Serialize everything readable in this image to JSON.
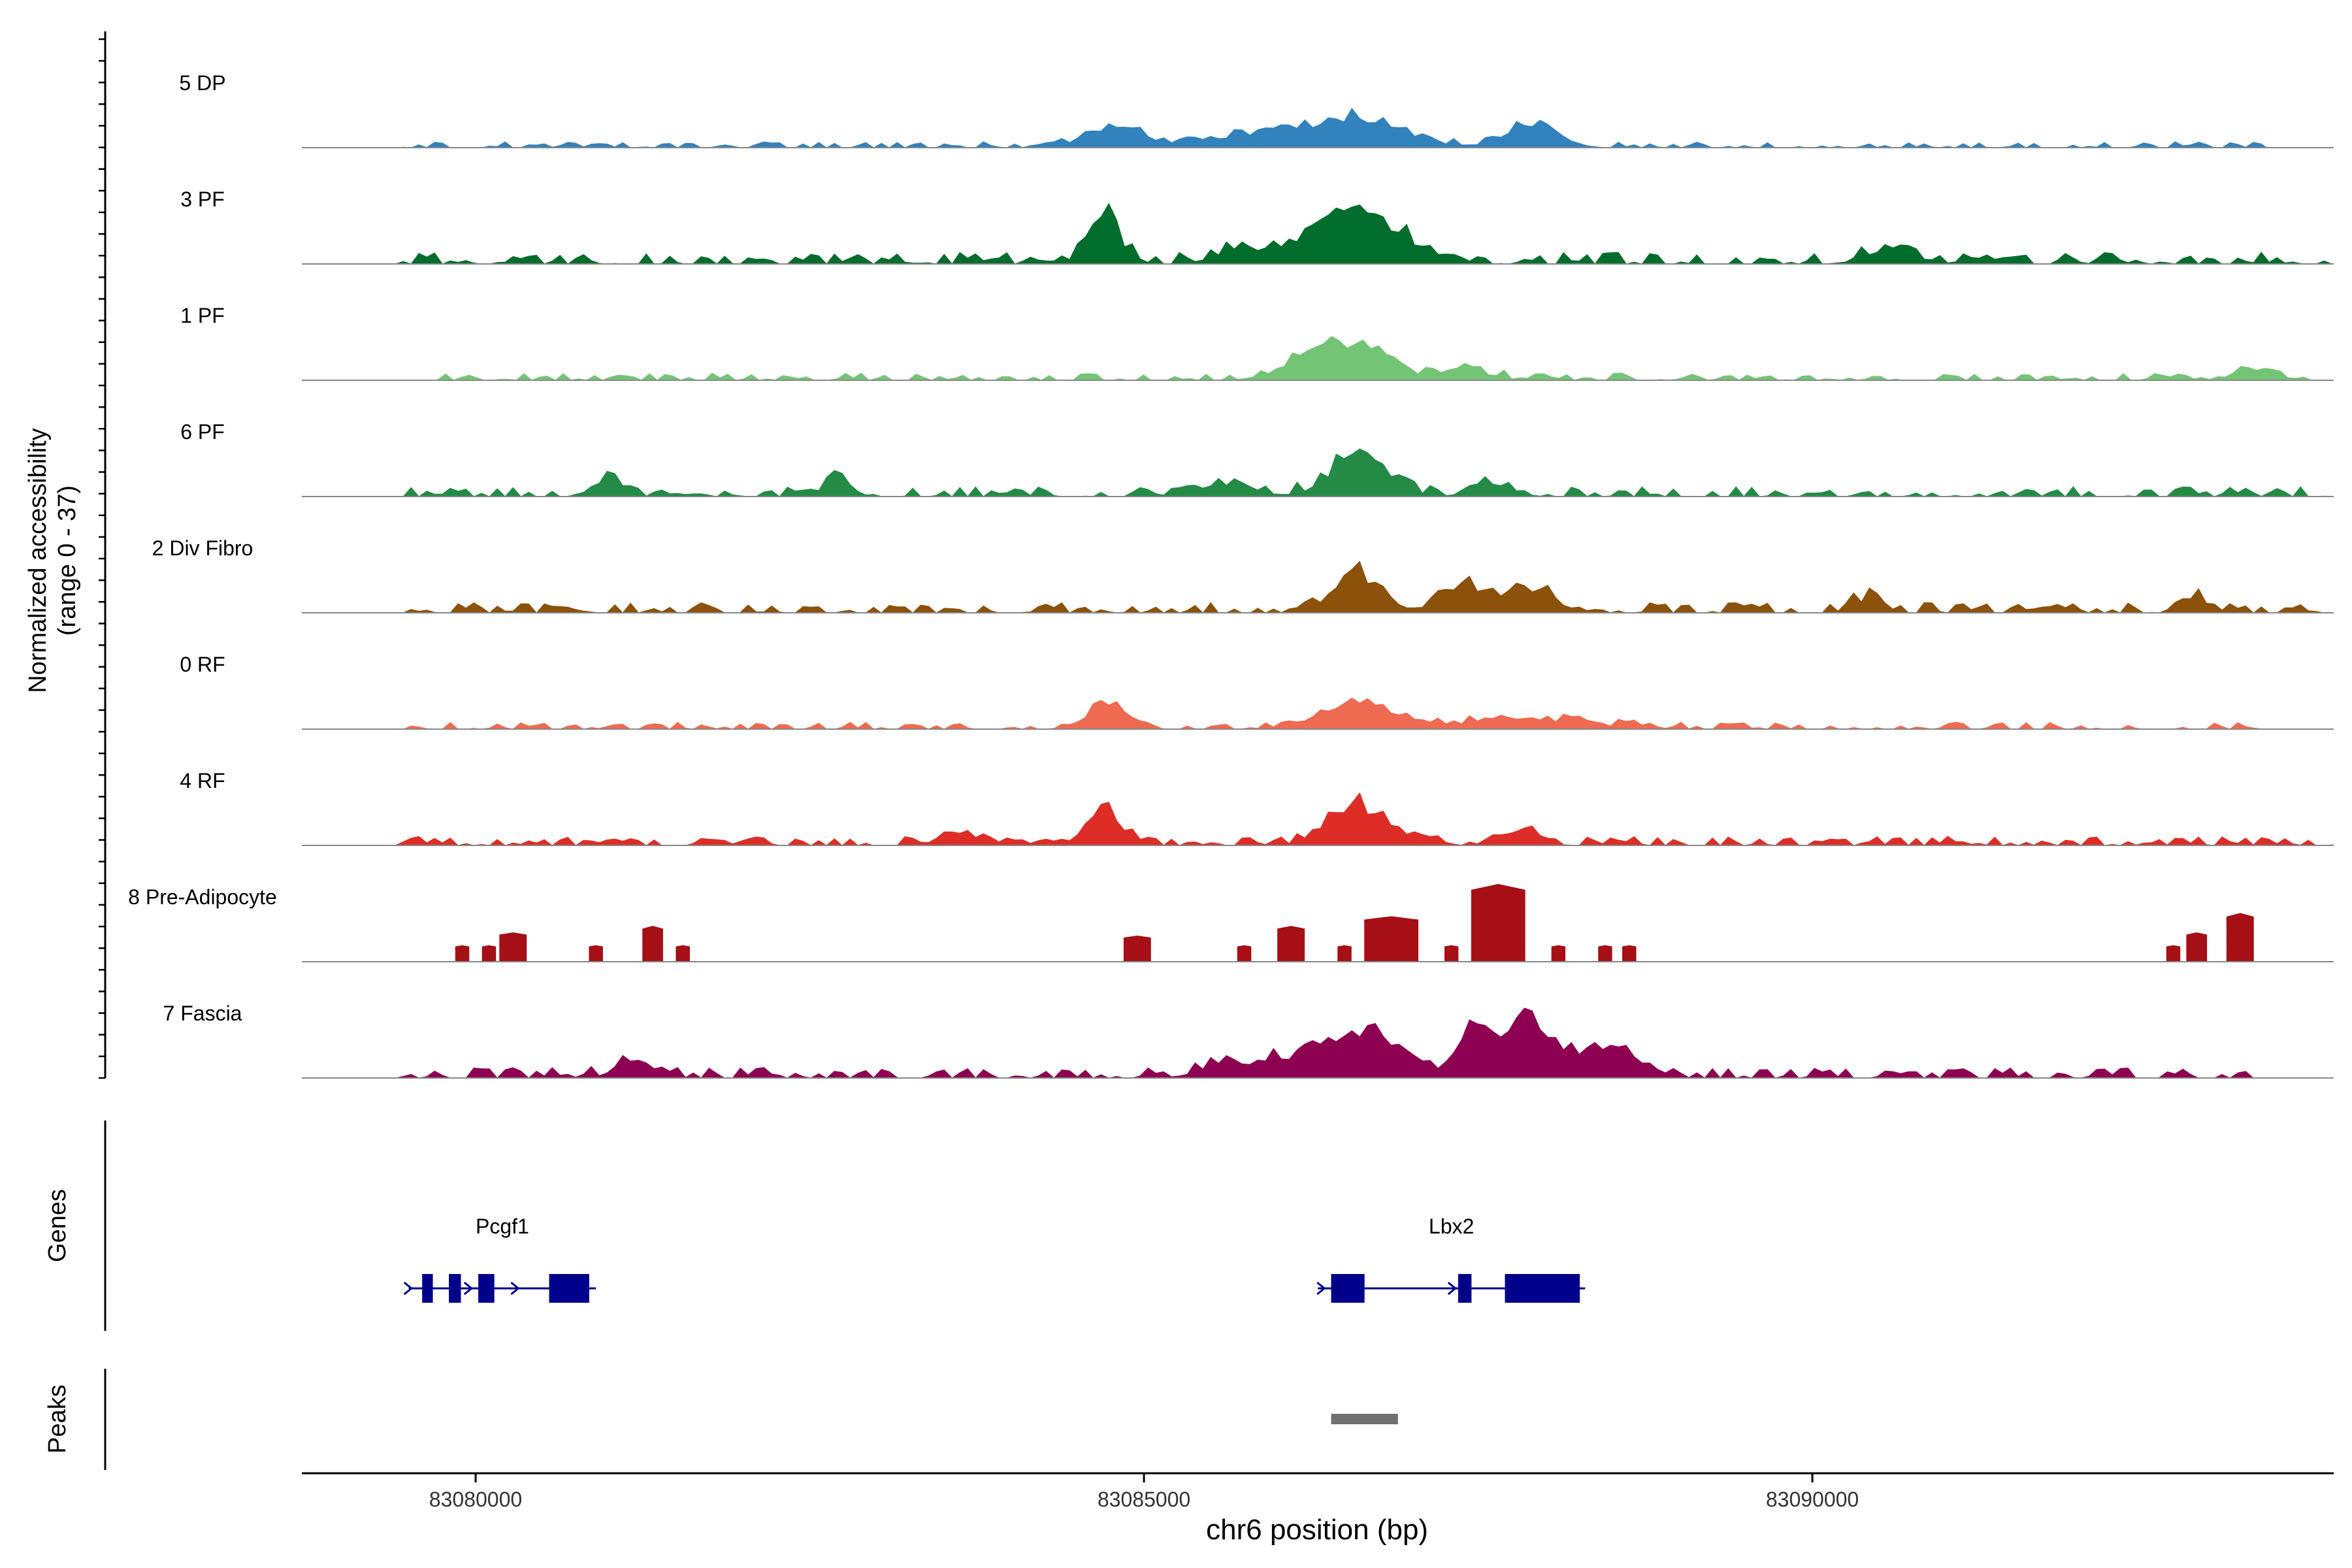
{
  "chart_data": {
    "type": "area",
    "title": "",
    "ylabel_line1": "Normalized accessibility",
    "ylabel_line2": "(range 0 - 37)",
    "xlabel": "chr6 position (bp)",
    "xlim": [
      83078700,
      83093900
    ],
    "ylim": [
      0,
      37
    ],
    "xticks": [
      83080000,
      83085000,
      83090000
    ],
    "xtick_labels": [
      "83080000",
      "83085000",
      "83090000"
    ],
    "genes_label": "Genes",
    "peaks_label": "Peaks",
    "baseline_color": "#888888",
    "gene_color": "#00008B",
    "peak_color": "#707070",
    "track_region": [
      83079400,
      83093900
    ],
    "tracks": [
      {
        "name": "5 DP",
        "color": "#3182BD",
        "noise": 0.9,
        "bp_start": 83079400,
        "bp_end": 83093400,
        "seed": 11,
        "peaks": [
          [
            83084760,
            7,
            300
          ],
          [
            83086600,
            9,
            500
          ],
          [
            83087900,
            8,
            260
          ],
          [
            83085800,
            4,
            500
          ]
        ]
      },
      {
        "name": "3 PF",
        "color": "#006D2C",
        "noise": 1.8,
        "bp_start": 83079400,
        "bp_end": 83093900,
        "seed": 23,
        "peaks": [
          [
            83084700,
            14,
            180
          ],
          [
            83086300,
            11,
            250
          ],
          [
            83086650,
            16,
            220
          ],
          [
            83087000,
            7,
            200
          ],
          [
            83085800,
            5,
            300
          ],
          [
            83090600,
            5,
            250
          ]
        ]
      },
      {
        "name": "1 PF",
        "color": "#74C476",
        "noise": 1.1,
        "bp_start": 83079600,
        "bp_end": 83093900,
        "seed": 37,
        "peaks": [
          [
            83086600,
            11,
            350
          ],
          [
            83086200,
            5,
            300
          ],
          [
            83087400,
            4,
            250
          ],
          [
            83093300,
            4,
            200
          ]
        ]
      },
      {
        "name": "6 PF",
        "color": "#238B45",
        "noise": 1.5,
        "bp_start": 83079400,
        "bp_end": 83093900,
        "seed": 41,
        "peaks": [
          [
            83086600,
            13,
            300
          ],
          [
            83081000,
            6,
            150
          ],
          [
            83082700,
            5,
            150
          ],
          [
            83087600,
            5,
            200
          ],
          [
            83085600,
            4,
            300
          ]
        ]
      },
      {
        "name": "2 Div Fibro",
        "color": "#8C510A",
        "noise": 1.6,
        "bp_start": 83079400,
        "bp_end": 83093900,
        "seed": 53,
        "peaks": [
          [
            83086600,
            13,
            250
          ],
          [
            83087400,
            9,
            250
          ],
          [
            83087900,
            8,
            250
          ],
          [
            83090400,
            5,
            150
          ],
          [
            83092900,
            4,
            150
          ]
        ]
      },
      {
        "name": "0 RF",
        "color": "#EE6A50",
        "noise": 1.1,
        "bp_start": 83079400,
        "bp_end": 83093400,
        "seed": 67,
        "peaks": [
          [
            83084700,
            8,
            200
          ],
          [
            83086600,
            7,
            400
          ],
          [
            83087800,
            3,
            700
          ]
        ]
      },
      {
        "name": "4 RF",
        "color": "#DE2D26",
        "noise": 1.4,
        "bp_start": 83079400,
        "bp_end": 83093900,
        "seed": 79,
        "peaks": [
          [
            83084700,
            11,
            200
          ],
          [
            83086600,
            14,
            300
          ],
          [
            83087800,
            5,
            200
          ],
          [
            83083600,
            4,
            200
          ]
        ]
      },
      {
        "name": "8 Pre-Adipocyte",
        "color": "#A50F15",
        "noise": 0,
        "bp_start": 83079400,
        "bp_end": 83093900,
        "seed": 83,
        "blocks": [
          [
            83079850,
            83079950,
            5
          ],
          [
            83080050,
            83080150,
            5
          ],
          [
            83080180,
            83080380,
            9
          ],
          [
            83080850,
            83080950,
            5
          ],
          [
            83081250,
            83081400,
            11
          ],
          [
            83081500,
            83081600,
            5
          ],
          [
            83084850,
            83085050,
            8
          ],
          [
            83085700,
            83085800,
            5
          ],
          [
            83086000,
            83086200,
            11
          ],
          [
            83086450,
            83086550,
            5
          ],
          [
            83086650,
            83087050,
            14
          ],
          [
            83087250,
            83087350,
            5
          ],
          [
            83087450,
            83087850,
            24
          ],
          [
            83088050,
            83088150,
            5
          ],
          [
            83088400,
            83088500,
            5
          ],
          [
            83088580,
            83088680,
            5
          ],
          [
            83092650,
            83092750,
            5
          ],
          [
            83092800,
            83092950,
            9
          ],
          [
            83093100,
            83093300,
            15
          ]
        ]
      },
      {
        "name": "7 Fascia",
        "color": "#8E0152",
        "noise": 1.6,
        "bp_start": 83079400,
        "bp_end": 83093400,
        "seed": 97,
        "peaks": [
          [
            83086400,
            12,
            400
          ],
          [
            83086800,
            9,
            300
          ],
          [
            83087500,
            15,
            200
          ],
          [
            83087900,
            18,
            250
          ],
          [
            83088500,
            9,
            300
          ],
          [
            83085700,
            5,
            300
          ],
          [
            83081200,
            5,
            200
          ]
        ]
      }
    ],
    "genes": [
      {
        "name": "Pcgf1",
        "start": 83079500,
        "end": 83080900,
        "direction": "+",
        "exons": [
          [
            83079600,
            83079680,
            "small"
          ],
          [
            83079800,
            83079890,
            "small"
          ],
          [
            83080020,
            83080140,
            "small"
          ],
          [
            83080550,
            83080850,
            "large"
          ]
        ],
        "marks": [
          83079500,
          83079950,
          83080300
        ]
      },
      {
        "name": "Lbx2",
        "start": 83086300,
        "end": 83088300,
        "direction": "+",
        "exons": [
          [
            83086400,
            83086650,
            "large"
          ],
          [
            83087350,
            83087450,
            "large"
          ],
          [
            83087700,
            83088260,
            "large"
          ]
        ],
        "marks": [
          83086330,
          83087310
        ]
      }
    ],
    "peaks": [
      [
        83086400,
        83086900
      ]
    ]
  }
}
